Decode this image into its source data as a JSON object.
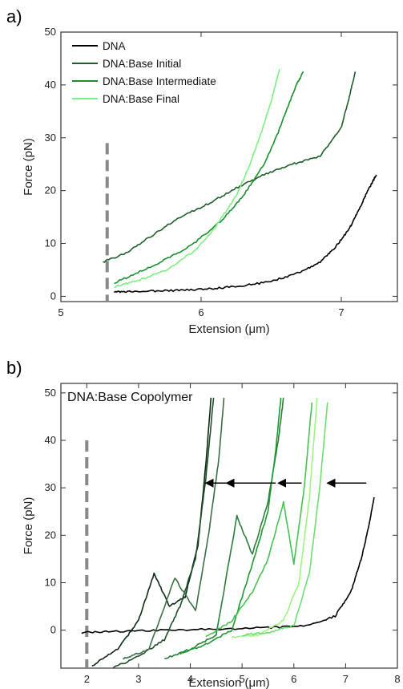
{
  "chart_data": [
    {
      "panel_label": "a)",
      "type": "line",
      "xlabel": "Extension (μm)",
      "ylabel": "Force (pN)",
      "xlim": [
        5,
        7.4
      ],
      "ylim": [
        -1,
        50
      ],
      "xticks": [
        5,
        6,
        7
      ],
      "yticks": [
        0,
        10,
        20,
        30,
        40,
        50
      ],
      "legend_position": "top-left",
      "reference_line_x": 5.33,
      "series": [
        {
          "name": "DNA",
          "color": "#000000",
          "x": [
            5.38,
            5.5,
            5.7,
            5.9,
            6.1,
            6.3,
            6.5,
            6.7,
            6.85,
            6.95,
            7.05,
            7.12,
            7.18,
            7.22,
            7.25
          ],
          "y": [
            0.8,
            0.9,
            1.0,
            1.2,
            1.5,
            2.0,
            2.8,
            4.5,
            6.5,
            9.0,
            12.5,
            16.0,
            19.5,
            21.5,
            23.0
          ]
        },
        {
          "name": "DNA:Base Initial",
          "color": "#1f5f2a",
          "x": [
            5.3,
            5.45,
            5.65,
            5.85,
            6.05,
            6.25,
            6.45,
            6.65,
            6.85,
            7.0,
            7.05,
            7.1
          ],
          "y": [
            6.5,
            8.0,
            11.5,
            15.0,
            17.5,
            20.5,
            23.0,
            25.0,
            26.5,
            32.0,
            37.0,
            42.5
          ]
        },
        {
          "name": "DNA:Base Intermediate",
          "color": "#1a8f2e",
          "x": [
            5.38,
            5.55,
            5.75,
            5.95,
            6.15,
            6.3,
            6.45,
            6.55,
            6.62,
            6.68,
            6.73
          ],
          "y": [
            2.5,
            4.5,
            7.0,
            10.0,
            14.5,
            19.0,
            25.0,
            31.0,
            36.0,
            40.0,
            42.5
          ]
        },
        {
          "name": "DNA:Base Final",
          "color": "#7cf080",
          "x": [
            5.38,
            5.55,
            5.75,
            5.95,
            6.1,
            6.25,
            6.35,
            6.43,
            6.5,
            6.56
          ],
          "y": [
            1.8,
            3.0,
            5.0,
            8.5,
            13.0,
            19.0,
            25.0,
            31.0,
            37.0,
            43.0
          ]
        }
      ]
    },
    {
      "panel_label": "b)",
      "type": "line",
      "title": "DNA:Base Copolymer",
      "xlabel": "Extension (μm)",
      "ylabel": "Force (pN)",
      "xlim": [
        1.5,
        8
      ],
      "ylim": [
        -8,
        52
      ],
      "xticks": [
        2,
        3,
        4,
        5,
        6,
        7,
        8
      ],
      "yticks": [
        0,
        10,
        20,
        30,
        40,
        50
      ],
      "reference_line_x": 2.0,
      "arrows": [
        {
          "from": [
            4.75,
            31
          ],
          "to": [
            4.3,
            31
          ]
        },
        {
          "from": [
            5.65,
            31
          ],
          "to": [
            4.7,
            31
          ]
        },
        {
          "from": [
            6.15,
            31
          ],
          "to": [
            5.7,
            31
          ]
        },
        {
          "from": [
            7.4,
            31
          ],
          "to": [
            6.65,
            31
          ]
        }
      ],
      "series": [
        {
          "color": "#000000",
          "x": [
            1.9,
            2.5,
            3.5,
            4.5,
            5.5,
            6.3,
            6.8,
            7.1,
            7.3,
            7.45,
            7.55
          ],
          "y": [
            -0.5,
            -0.3,
            0,
            0.2,
            0.5,
            1.0,
            3.0,
            8.0,
            15.0,
            22.0,
            28.0
          ]
        },
        {
          "color": "#0c2a14",
          "x": [
            2.1,
            2.6,
            3.0,
            3.3,
            3.6,
            3.9,
            4.15,
            4.3,
            4.4
          ],
          "y": [
            -7.5,
            -4.0,
            2.0,
            12.0,
            5.0,
            7.0,
            18.0,
            35.0,
            49.0
          ]
        },
        {
          "color": "#1f4f2a",
          "x": [
            2.5,
            3.0,
            3.5,
            3.8,
            4.1,
            4.3,
            4.45
          ],
          "y": [
            -8.0,
            -5.5,
            -2.0,
            5.0,
            15.0,
            32.0,
            49.0
          ]
        },
        {
          "color": "#3a6f44",
          "x": [
            2.7,
            3.2,
            3.7,
            4.1,
            4.35,
            4.55,
            4.65
          ],
          "y": [
            -6.0,
            -4.0,
            11.0,
            4.0,
            20.0,
            36.0,
            49.0
          ]
        },
        {
          "color": "#2b7d3a",
          "x": [
            3.5,
            4.0,
            4.5,
            4.9,
            5.2,
            5.5,
            5.7,
            5.8
          ],
          "y": [
            -6.0,
            -4.0,
            -1.0,
            24.0,
            16.0,
            27.0,
            40.0,
            49.0
          ]
        },
        {
          "color": "#1a9a30",
          "x": [
            3.8,
            4.3,
            4.8,
            5.2,
            5.5,
            5.65,
            5.75
          ],
          "y": [
            -5.0,
            -3.0,
            0.0,
            14.0,
            25.0,
            38.0,
            49.0
          ]
        },
        {
          "color": "#45c24f",
          "x": [
            4.3,
            4.8,
            5.2,
            5.5,
            5.8,
            6.0,
            6.2,
            6.35
          ],
          "y": [
            -1.5,
            2.0,
            8.0,
            15.0,
            27.0,
            14.0,
            30.0,
            48.0
          ]
        },
        {
          "color": "#9cf57f",
          "x": [
            4.8,
            5.3,
            5.8,
            6.1,
            6.3,
            6.45
          ],
          "y": [
            -1.5,
            -1.0,
            2.0,
            10.0,
            28.0,
            49.0
          ]
        },
        {
          "color": "#6ee06e",
          "x": [
            5.0,
            5.5,
            6.0,
            6.3,
            6.5,
            6.65
          ],
          "y": [
            -1.0,
            -0.5,
            1.0,
            12.0,
            30.0,
            48.0
          ]
        }
      ]
    }
  ]
}
